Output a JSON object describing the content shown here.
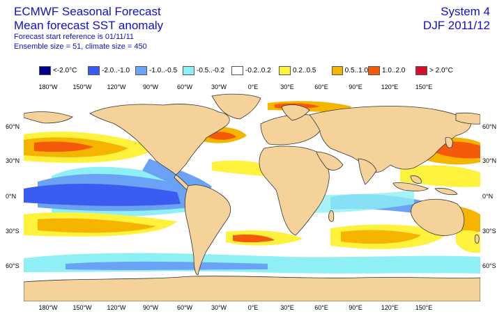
{
  "header": {
    "title_line1": "ECMWF Seasonal Forecast",
    "title_line2": "Mean forecast SST anomaly",
    "line3": "Forecast start reference is 01/11/11",
    "line4": "Ensemble size = 51, climate size = 450",
    "system": "System 4",
    "period": "DJF 2011/12"
  },
  "legend": [
    {
      "label": "<-2.0°C",
      "color": "#00008b"
    },
    {
      "label": "-2.0..-1.0",
      "color": "#3a5cf0"
    },
    {
      "label": "-1.0..-0.5",
      "color": "#6aa2f5"
    },
    {
      "label": "-0.5..-0.2",
      "color": "#8ef0f5"
    },
    {
      "label": "-0.2..0.2",
      "color": "#ffffff"
    },
    {
      "label": "0.2..0.5",
      "color": "#fff23c"
    },
    {
      "label": "0.5..1.0",
      "color": "#f5b400"
    },
    {
      "label": "1.0..2.0",
      "color": "#f55a0a"
    },
    {
      "label": "> 2.0°C",
      "color": "#d2102a"
    }
  ],
  "axes": {
    "lon_labels": [
      "180°W",
      "150°W",
      "120°W",
      "90°W",
      "60°W",
      "30°W",
      "0°E",
      "30°E",
      "60°E",
      "90°E",
      "120°E",
      "150°E"
    ],
    "lat_labels": [
      "60°N",
      "30°N",
      "0°N",
      "30°S",
      "60°S"
    ]
  },
  "colors": {
    "land": "#f5d29a",
    "ocean_neutral": "#ffffff",
    "coast": "#333333"
  }
}
